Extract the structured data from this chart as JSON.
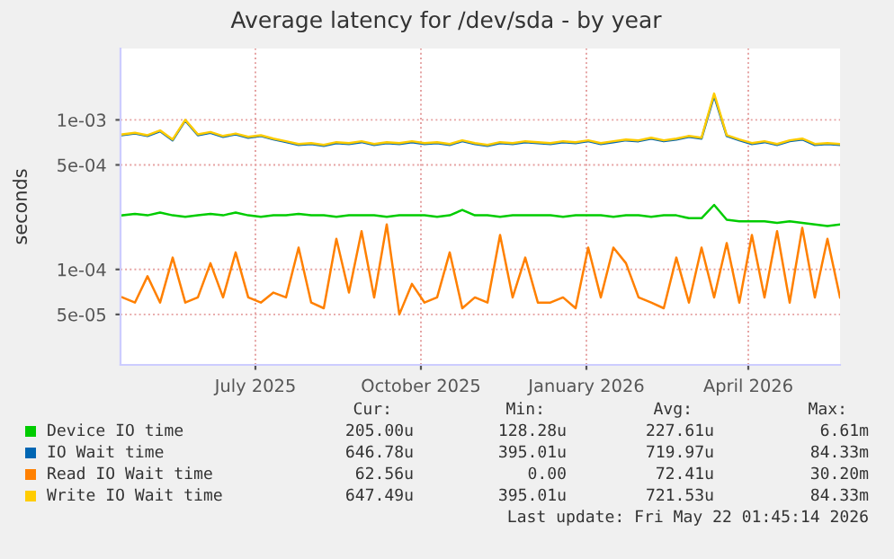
{
  "chart_data": {
    "type": "line",
    "title": "Average latency for /dev/sda - by year",
    "ylabel": "seconds",
    "log": "y",
    "grid": true,
    "legend": "bottom",
    "marker": "none",
    "line_style": "solid",
    "x": [
      "2025-04-18",
      "2025-04-25",
      "2025-05-02",
      "2025-05-09",
      "2025-05-16",
      "2025-05-23",
      "2025-05-30",
      "2025-06-06",
      "2025-06-13",
      "2025-06-20",
      "2025-06-27",
      "2025-07-04",
      "2025-07-11",
      "2025-07-18",
      "2025-07-25",
      "2025-08-01",
      "2025-08-08",
      "2025-08-15",
      "2025-08-22",
      "2025-08-29",
      "2025-09-05",
      "2025-09-12",
      "2025-09-19",
      "2025-09-26",
      "2025-10-03",
      "2025-10-10",
      "2025-10-17",
      "2025-10-24",
      "2025-10-31",
      "2025-11-07",
      "2025-11-14",
      "2025-11-21",
      "2025-11-28",
      "2025-12-05",
      "2025-12-12",
      "2025-12-19",
      "2025-12-26",
      "2026-01-02",
      "2026-01-09",
      "2026-01-16",
      "2026-01-23",
      "2026-01-30",
      "2026-02-06",
      "2026-02-13",
      "2026-02-20",
      "2026-02-27",
      "2026-03-06",
      "2026-03-13",
      "2026-03-20",
      "2026-03-27",
      "2026-04-03",
      "2026-04-10",
      "2026-04-17",
      "2026-04-24",
      "2026-05-01",
      "2026-05-08",
      "2026-05-15",
      "2026-05-22"
    ],
    "xlim": [
      "2025-04-17",
      "2026-05-22"
    ],
    "xticks": [
      {
        "value": "2025-07-01",
        "label": "July 2025"
      },
      {
        "value": "2025-10-01",
        "label": "October 2025"
      },
      {
        "value": "2026-01-01",
        "label": "January 2026"
      },
      {
        "value": "2026-04-01",
        "label": "April 2026"
      }
    ],
    "ylim": [
      2.3e-05,
      0.003
    ],
    "yticks": [
      {
        "value": 5e-05,
        "label": "5e-05"
      },
      {
        "value": 0.0001,
        "label": "1e-04"
      },
      {
        "value": 0.0005,
        "label": "5e-04"
      },
      {
        "value": 0.001,
        "label": "1e-03"
      }
    ],
    "series": [
      {
        "name": "Device IO time",
        "color": "#00cc00",
        "values": [
          0.00023,
          0.000235,
          0.00023,
          0.00024,
          0.00023,
          0.000225,
          0.00023,
          0.000235,
          0.00023,
          0.00024,
          0.00023,
          0.000225,
          0.00023,
          0.00023,
          0.000235,
          0.00023,
          0.00023,
          0.000225,
          0.00023,
          0.00023,
          0.00023,
          0.000225,
          0.00023,
          0.00023,
          0.00023,
          0.000225,
          0.00023,
          0.00025,
          0.00023,
          0.00023,
          0.000225,
          0.00023,
          0.00023,
          0.00023,
          0.00023,
          0.000225,
          0.00023,
          0.00023,
          0.00023,
          0.000225,
          0.00023,
          0.00023,
          0.000225,
          0.00023,
          0.00023,
          0.00022,
          0.00022,
          0.00027,
          0.000215,
          0.00021,
          0.00021,
          0.00021,
          0.000205,
          0.00021,
          0.000205,
          0.0002,
          0.000195,
          0.0002
        ]
      },
      {
        "name": "IO Wait time",
        "color": "#0066b3",
        "values": [
          0.00079,
          0.00081,
          0.00078,
          0.00084,
          0.00073,
          0.00099,
          0.00079,
          0.00082,
          0.00077,
          0.0008,
          0.00076,
          0.00078,
          0.00074,
          0.00071,
          0.00068,
          0.00069,
          0.00067,
          0.0007,
          0.00069,
          0.00071,
          0.00068,
          0.0007,
          0.00069,
          0.00071,
          0.00069,
          0.0007,
          0.00068,
          0.00072,
          0.00069,
          0.00067,
          0.0007,
          0.00069,
          0.00071,
          0.0007,
          0.00069,
          0.00071,
          0.0007,
          0.00072,
          0.00069,
          0.00071,
          0.00073,
          0.00072,
          0.00075,
          0.00072,
          0.00074,
          0.00077,
          0.00075,
          0.00145,
          0.00078,
          0.00073,
          0.00069,
          0.00071,
          0.00068,
          0.00072,
          0.00074,
          0.00068,
          0.00069,
          0.00068
        ]
      },
      {
        "name": "Read IO Wait time",
        "color": "#ff8000",
        "values": [
          6.5e-05,
          6e-05,
          9e-05,
          6e-05,
          0.00012,
          6e-05,
          6.5e-05,
          0.00011,
          6.5e-05,
          0.00013,
          6.5e-05,
          6e-05,
          7e-05,
          6.5e-05,
          0.00014,
          6e-05,
          5.5e-05,
          0.00016,
          7e-05,
          0.00018,
          6.5e-05,
          0.0002,
          5e-05,
          8e-05,
          6e-05,
          6.5e-05,
          0.00013,
          5.5e-05,
          6.5e-05,
          6e-05,
          0.00017,
          6.5e-05,
          0.00012,
          6e-05,
          6e-05,
          6.5e-05,
          5.5e-05,
          0.00014,
          6.5e-05,
          0.00014,
          0.00011,
          6.5e-05,
          6e-05,
          5.5e-05,
          0.00012,
          6e-05,
          0.00014,
          6.5e-05,
          0.00015,
          6e-05,
          0.00017,
          6.5e-05,
          0.00018,
          6e-05,
          0.00019,
          6.5e-05,
          0.00016,
          6.5e-05
        ]
      },
      {
        "name": "Write IO Wait time",
        "color": "#ffcc00",
        "values": [
          0.0008,
          0.00082,
          0.00079,
          0.00085,
          0.00074,
          0.001,
          0.0008,
          0.00083,
          0.00078,
          0.00081,
          0.00077,
          0.00079,
          0.00075,
          0.00072,
          0.00069,
          0.0007,
          0.00068,
          0.00071,
          0.0007,
          0.00072,
          0.00069,
          0.00071,
          0.0007,
          0.00072,
          0.0007,
          0.00071,
          0.00069,
          0.00073,
          0.0007,
          0.00068,
          0.00071,
          0.0007,
          0.00072,
          0.00071,
          0.0007,
          0.00072,
          0.00071,
          0.00073,
          0.0007,
          0.00072,
          0.00074,
          0.00073,
          0.00076,
          0.00073,
          0.00075,
          0.00078,
          0.00076,
          0.0015,
          0.00079,
          0.00074,
          0.0007,
          0.00072,
          0.00069,
          0.00073,
          0.00075,
          0.00069,
          0.0007,
          0.00069
        ]
      }
    ],
    "annotations": [
      "Cur:",
      "Min:",
      "Avg:",
      "Max:",
      "205.00u",
      "128.28u",
      "227.61u",
      "6.61m",
      "646.78u",
      "395.01u",
      "719.97u",
      "84.33m",
      "62.56u",
      "0.00",
      "72.41u",
      "30.20m",
      "647.49u",
      "395.01u",
      "721.53u",
      "84.33m",
      "Last update: Fri May 22 01:45:14 2026"
    ]
  }
}
